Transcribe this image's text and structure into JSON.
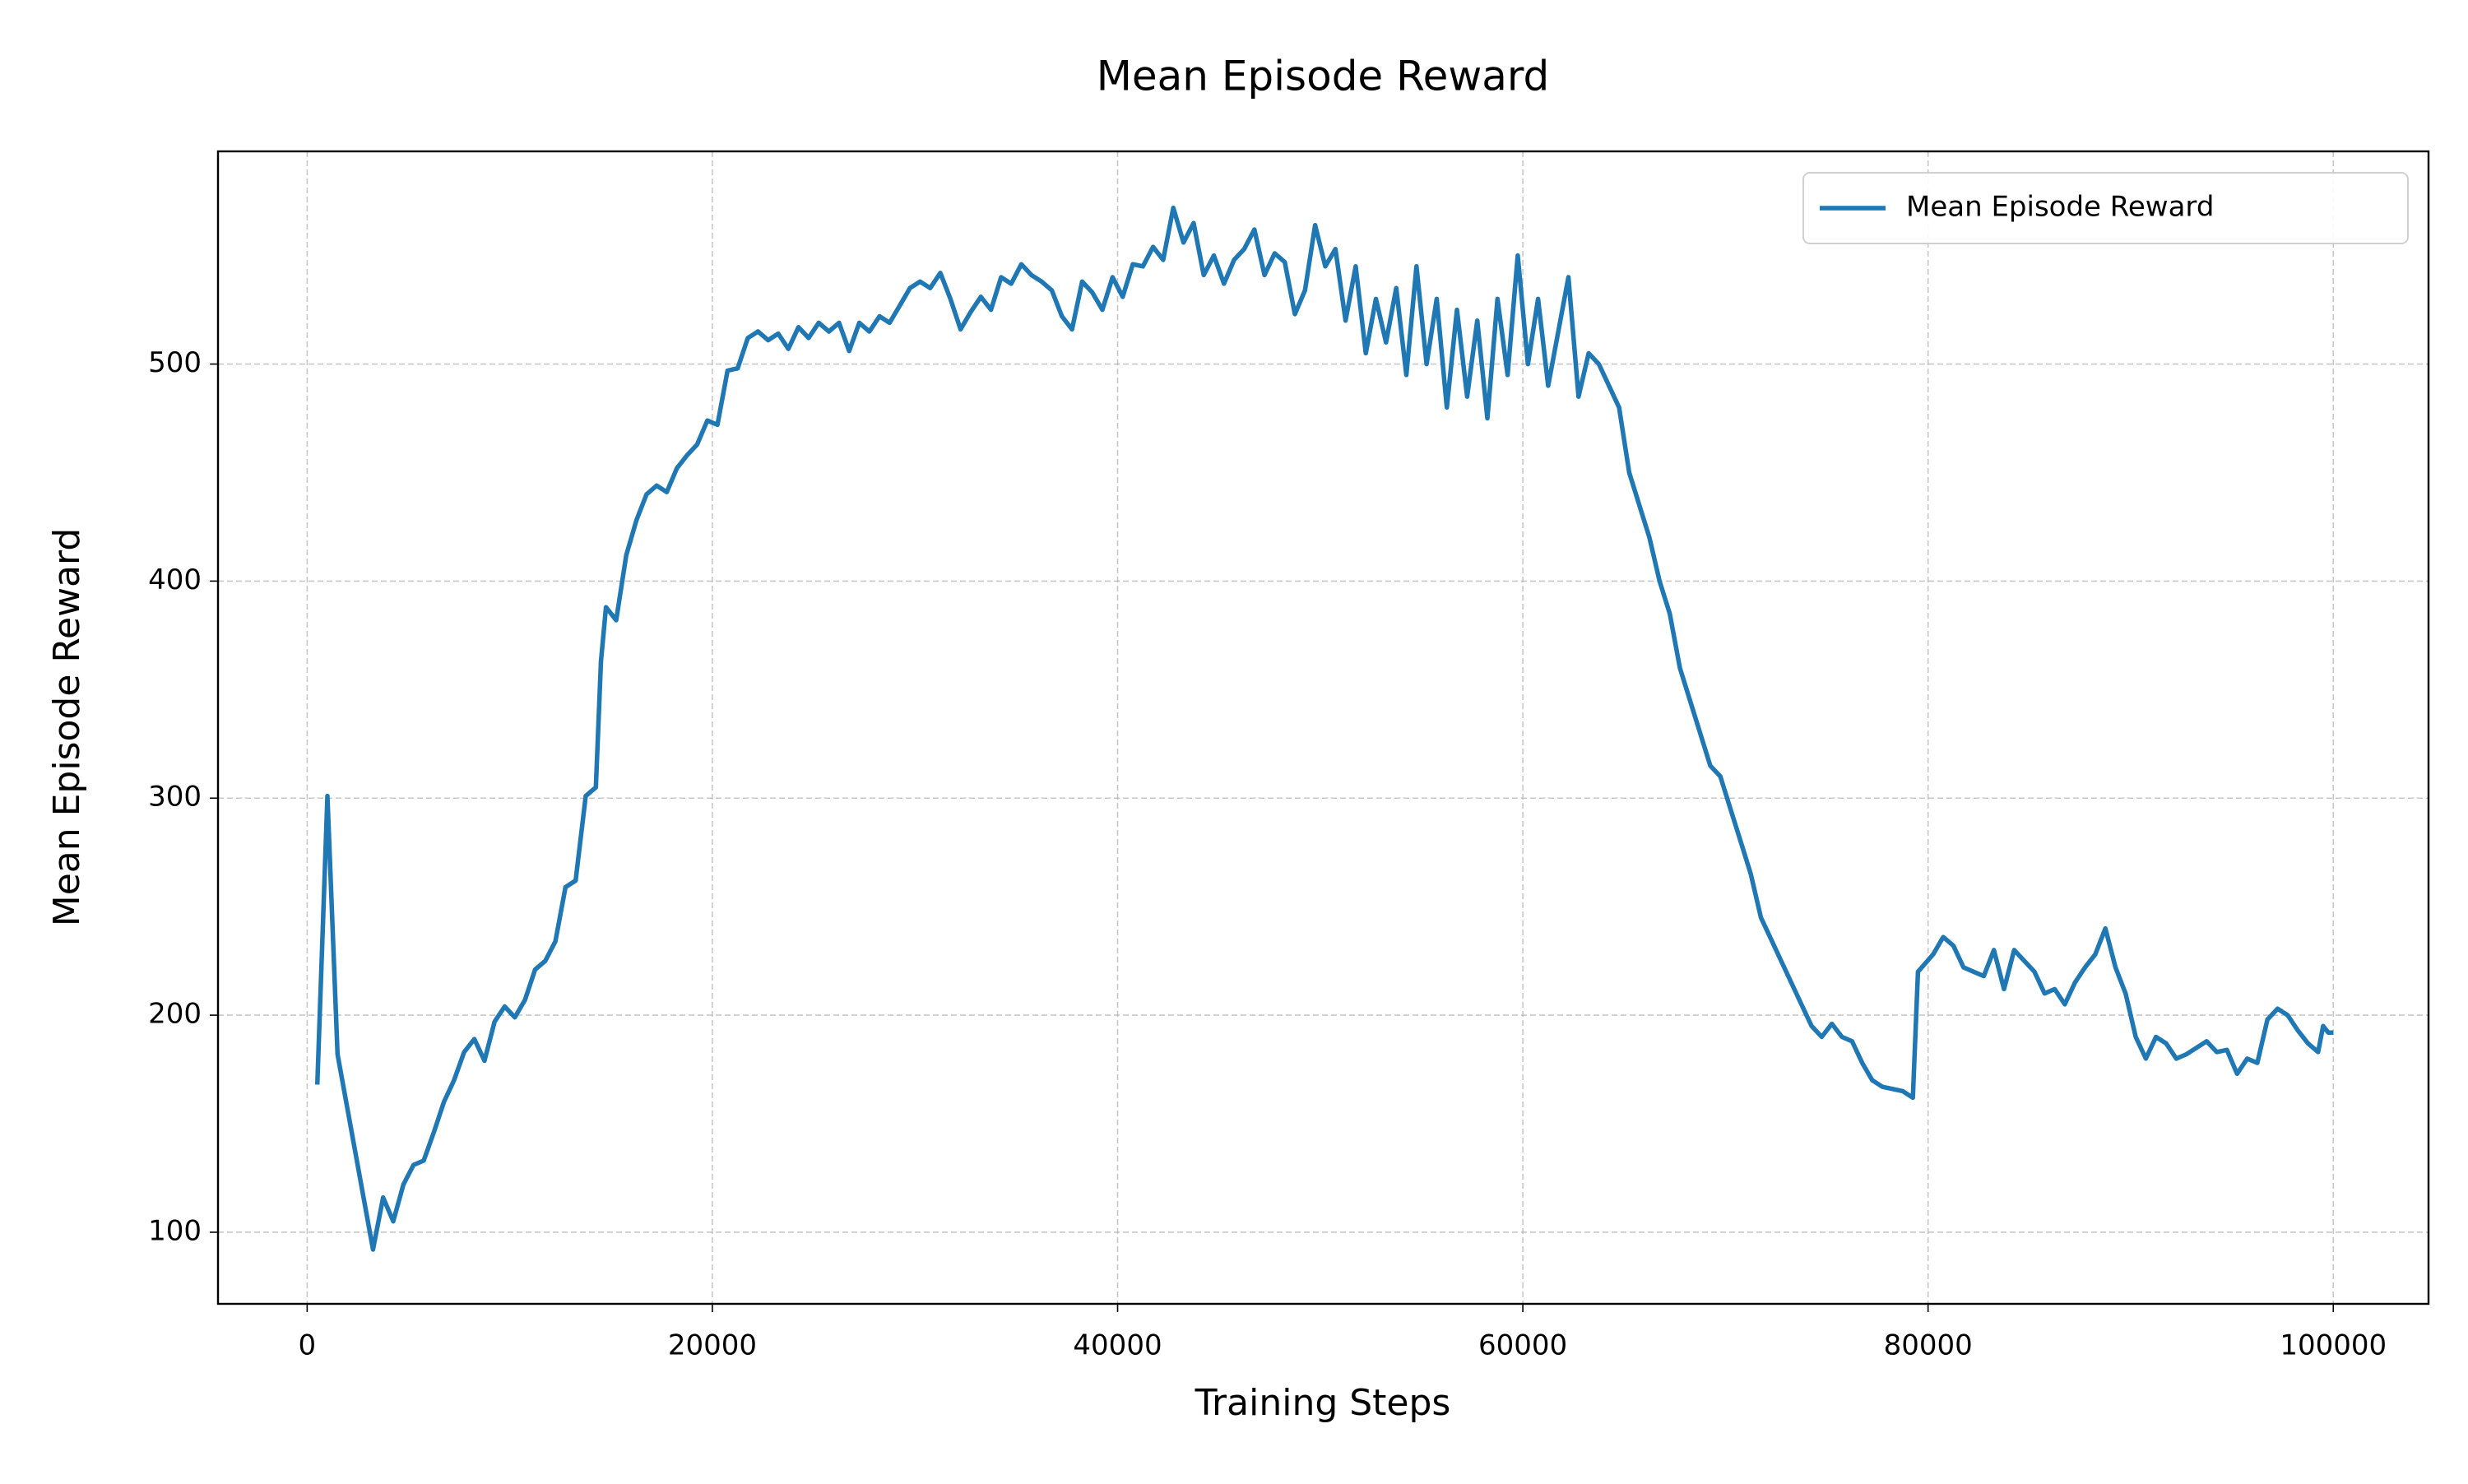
{
  "chart_data": {
    "type": "line",
    "title": "Mean Episode Reward",
    "x_label": "Training Steps",
    "y_label": "Mean Episode Reward",
    "x": [
      500,
      1000,
      1500,
      3250,
      3750,
      4250,
      4750,
      5250,
      5750,
      6250,
      6750,
      7250,
      7750,
      8250,
      8750,
      9250,
      9750,
      10250,
      10750,
      11250,
      11750,
      12250,
      12750,
      13250,
      13750,
      14250,
      14500,
      14750,
      15250,
      15750,
      16250,
      16750,
      17250,
      17750,
      18250,
      18750,
      19250,
      19750,
      20250,
      20750,
      21250,
      21750,
      22250,
      22750,
      23250,
      23750,
      24250,
      24750,
      25250,
      25750,
      26250,
      26750,
      27250,
      27750,
      28250,
      28750,
      29250,
      29750,
      30250,
      30750,
      31250,
      31750,
      32250,
      32750,
      33250,
      33750,
      34250,
      34750,
      35250,
      35750,
      36250,
      36750,
      37250,
      37750,
      38250,
      38750,
      39250,
      39750,
      40250,
      40750,
      41250,
      41750,
      42250,
      42750,
      43250,
      43750,
      44250,
      44750,
      45250,
      45750,
      46250,
      46750,
      47250,
      47750,
      48250,
      48750,
      49250,
      49750,
      50250,
      50750,
      51250,
      51750,
      52250,
      52750,
      53250,
      53750,
      54250,
      54750,
      55250,
      55750,
      56250,
      56750,
      57250,
      57750,
      58250,
      58750,
      59250,
      59750,
      60250,
      60750,
      61250,
      61750,
      62250,
      62750,
      63250,
      63750,
      64250,
      64750,
      65250,
      65750,
      66250,
      66750,
      67250,
      67750,
      68250,
      68750,
      69250,
      69750,
      70250,
      70750,
      71250,
      71750,
      72250,
      72750,
      73250,
      73750,
      74250,
      74750,
      75250,
      75750,
      76250,
      76750,
      77250,
      77750,
      78250,
      78750,
      79250,
      79500,
      80250,
      80750,
      81250,
      81750,
      82250,
      82750,
      83250,
      83750,
      84250,
      84750,
      85250,
      85750,
      86250,
      86750,
      87250,
      87750,
      88250,
      88750,
      89250,
      89750,
      90250,
      90750,
      91250,
      91750,
      92250,
      92750,
      93250,
      93750,
      94250,
      94750,
      95250,
      95750,
      96250,
      96750,
      97250,
      97750,
      98250,
      98750,
      99250,
      99500,
      99750,
      100000
    ],
    "series": [
      {
        "name": "Mean Episode Reward",
        "color": "#1f77b4",
        "values": [
          168,
          301,
          182,
          92,
          116,
          105,
          122,
          131,
          133,
          146,
          160,
          170,
          183,
          189,
          179,
          197,
          204,
          199,
          207,
          221,
          225,
          234,
          259,
          262,
          301,
          305,
          363,
          388,
          382,
          412,
          428,
          440,
          444,
          441,
          452,
          458,
          463,
          474,
          472,
          497,
          498,
          512,
          515,
          511,
          514,
          507,
          517,
          512,
          519,
          515,
          519,
          506,
          519,
          515,
          522,
          519,
          527,
          535,
          538,
          535,
          542,
          530,
          516,
          524,
          531,
          525,
          540,
          537,
          546,
          541,
          538,
          534,
          522,
          516,
          538,
          533,
          525,
          540,
          531,
          546,
          545,
          554,
          548,
          572,
          556,
          565,
          541,
          550,
          537,
          548,
          553,
          562,
          541,
          551,
          547,
          523,
          534,
          564,
          545,
          553,
          520,
          545,
          505,
          530,
          510,
          535,
          495,
          545,
          500,
          530,
          480,
          525,
          485,
          520,
          475,
          530,
          495,
          550,
          500,
          530,
          490,
          515,
          540,
          485,
          505,
          500,
          490,
          480,
          450,
          435,
          420,
          400,
          385,
          360,
          345,
          330,
          315,
          310,
          295,
          280,
          265,
          245,
          235,
          225,
          215,
          205,
          195,
          190,
          196,
          190,
          188,
          178,
          170,
          167,
          166,
          165,
          162,
          220,
          228,
          236,
          232,
          222,
          220,
          218,
          230,
          212,
          230,
          225,
          220,
          210,
          212,
          205,
          215,
          222,
          228,
          240,
          222,
          210,
          190,
          180,
          190,
          187,
          180,
          182,
          185,
          188,
          183,
          184,
          173,
          180,
          178,
          198,
          203,
          200,
          193,
          187,
          183,
          195,
          192,
          192
        ]
      }
    ],
    "xlim": [
      -4400,
      104700
    ],
    "ylim": [
      67,
      598
    ],
    "xticks": [
      0,
      20000,
      40000,
      60000,
      80000,
      100000
    ],
    "yticks": [
      100,
      200,
      300,
      400,
      500
    ],
    "grid": true,
    "legend": "upper right"
  }
}
